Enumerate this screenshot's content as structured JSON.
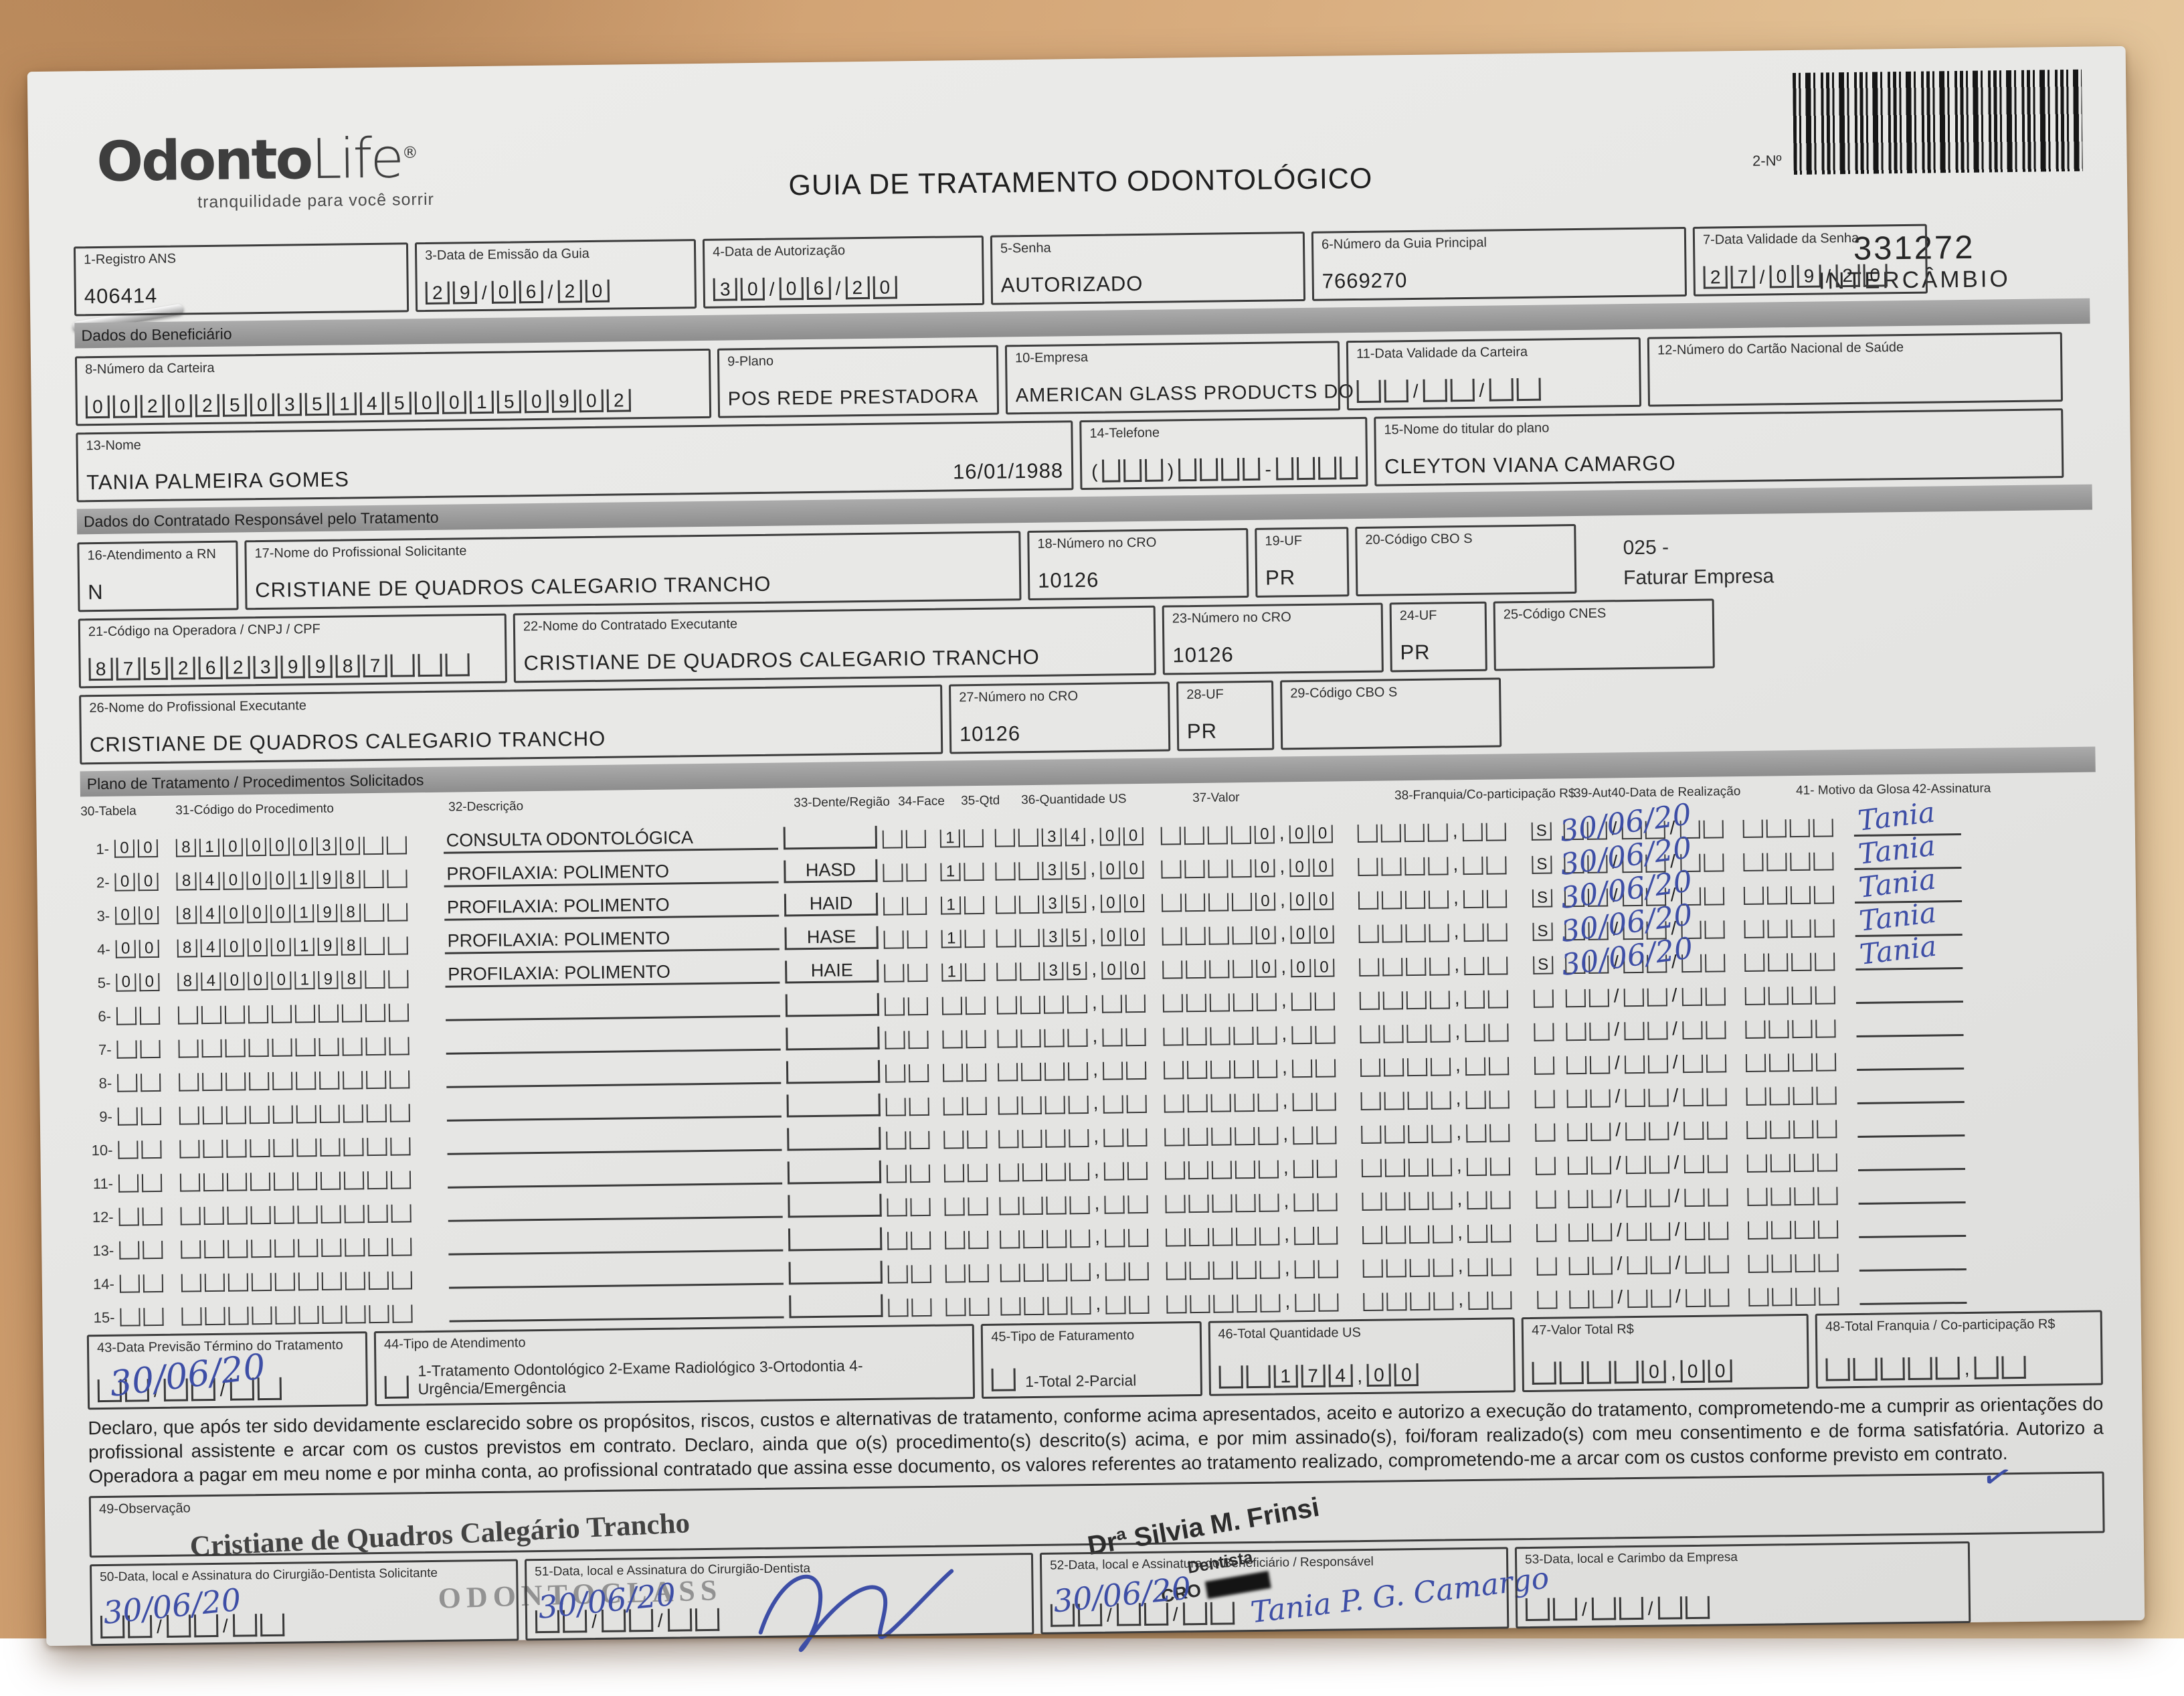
{
  "header": {
    "logo_bold": "Odonto",
    "logo_light": "Life",
    "logo_reg": "®",
    "tagline": "tranquilidade para você sorrir",
    "title": "GUIA DE TRATAMENTO ODONTOLÓGICO",
    "barcode_label": "2-Nº",
    "guide_number": "331272",
    "guide_type": "INTERCÂMBIO"
  },
  "sections": {
    "beneficiario": "Dados do Beneficiário",
    "contratado": "Dados do Contratado Responsável pelo Tratamento",
    "plano": "Plano de Tratamento / Procedimentos Solicitados"
  },
  "fields": {
    "f1": {
      "label": "1-Registro ANS",
      "value": "406414"
    },
    "f3": {
      "label": "3-Data de Emissão da Guia",
      "value": "29/06/20"
    },
    "f4": {
      "label": "4-Data de Autorização",
      "value": "30/06/20"
    },
    "f5": {
      "label": "5-Senha",
      "value": "AUTORIZADO"
    },
    "f6": {
      "label": "6-Número da Guia Principal",
      "value": "7669270"
    },
    "f7": {
      "label": "7-Data Validade da Senha",
      "value": "27/09/20"
    },
    "f8": {
      "label": "8-Número da Carteira",
      "value": "00202503514500150902"
    },
    "f9": {
      "label": "9-Plano",
      "value": "POS REDE PRESTADORA"
    },
    "f10": {
      "label": "10-Empresa",
      "value": "AMERICAN GLASS PRODUCTS DO"
    },
    "f11": {
      "label": "11-Data Validade da Carteira",
      "value": ""
    },
    "f12": {
      "label": "12-Número do Cartão Nacional de Saúde",
      "value": ""
    },
    "f13": {
      "label": "13-Nome",
      "value": "TANIA PALMEIRA GOMES",
      "birthdate": "16/01/1988"
    },
    "f14": {
      "label": "14-Telefone",
      "value": ""
    },
    "f15": {
      "label": "15-Nome do titular do plano",
      "value": "CLEYTON VIANA CAMARGO"
    },
    "f16": {
      "label": "16-Atendimento a RN",
      "value": "N"
    },
    "f17": {
      "label": "17-Nome do Profissional Solicitante",
      "value": "CRISTIANE DE QUADROS CALEGARIO TRANCHO"
    },
    "f18": {
      "label": "18-Número no CRO",
      "value": "10126"
    },
    "f19": {
      "label": "19-UF",
      "value": "PR"
    },
    "f20": {
      "label": "20-Código CBO S",
      "value": ""
    },
    "f21": {
      "label": "21-Código na Operadora / CNPJ / CPF",
      "value": "87526239987"
    },
    "f22": {
      "label": "22-Nome do Contratado Executante",
      "value": "CRISTIANE DE QUADROS CALEGARIO TRANCHO"
    },
    "f23": {
      "label": "23-Número no CRO",
      "value": "10126"
    },
    "f24": {
      "label": "24-UF",
      "value": "PR"
    },
    "f25": {
      "label": "25-Código CNES",
      "value": ""
    },
    "f26": {
      "label": "26-Nome do Profissional Executante",
      "value": "CRISTIANE DE QUADROS CALEGARIO TRANCHO"
    },
    "f27": {
      "label": "27-Número no CRO",
      "value": "10126"
    },
    "f28": {
      "label": "28-UF",
      "value": "PR"
    },
    "f29": {
      "label": "29-Código CBO S",
      "value": ""
    },
    "f43": {
      "label": "43-Data Previsão Término do Tratamento",
      "handwritten": "30/06/20"
    },
    "f44": {
      "label": "44-Tipo de Atendimento",
      "options": "1-Tratamento Odontológico  2-Exame Radiológico  3-Ortodontia  4-Urgência/Emergência"
    },
    "f45": {
      "label": "45-Tipo de Faturamento",
      "options": "1-Total  2-Parcial"
    },
    "f46": {
      "label": "46-Total Quantidade US",
      "value": "174,00"
    },
    "f47": {
      "label": "47-Valor Total R$",
      "value": "0,00"
    },
    "f48": {
      "label": "48-Total Franquia / Co-participação R$",
      "value": ""
    },
    "f49": {
      "label": "49-Observação"
    },
    "f50": {
      "label": "50-Data, local e Assinatura do Cirurgião-Dentista Solicitante",
      "handwritten": "30/06/20"
    },
    "f51": {
      "label": "51-Data, local e Assinatura do Cirurgião-Dentista",
      "handwritten": "30/06/20"
    },
    "f52": {
      "label": "52-Data, local e Assinatura do Beneficiário / Responsável",
      "handwritten": "30/06/20",
      "signature": "Tania P. G. Camargo"
    },
    "f53": {
      "label": "53-Data, local e Carimbo da Empresa"
    }
  },
  "extra": {
    "code": "025 -",
    "code_desc": "Faturar Empresa"
  },
  "table": {
    "columns": [
      "30-Tabela",
      "31-Código do Procedimento",
      "32-Descrição",
      "33-Dente/Região",
      "34-Face",
      "35-Qtd",
      "36-Quantidade US",
      "37-Valor",
      "38-Franquia/Co-participação R$",
      "39-Aut",
      "40-Data de Realização",
      "41- Motivo da Glosa",
      "42-Assinatura"
    ],
    "rows": [
      {
        "n": "1",
        "tabela": "00",
        "codigo": "81000030",
        "descricao": "CONSULTA ODONTOLÓGICA",
        "dente": "",
        "face": "",
        "qtd": "1",
        "quantidade_us": "34,00",
        "valor": "0,00",
        "franquia": "",
        "aut": "S",
        "data_realizacao": "30/06/20",
        "assinatura": "Tania"
      },
      {
        "n": "2",
        "tabela": "00",
        "codigo": "84000198",
        "descricao": "PROFILAXIA: POLIMENTO",
        "dente": "HASD",
        "face": "",
        "qtd": "1",
        "quantidade_us": "35,00",
        "valor": "0,00",
        "franquia": "",
        "aut": "S",
        "data_realizacao": "30/06/20",
        "assinatura": "Tania"
      },
      {
        "n": "3",
        "tabela": "00",
        "codigo": "84000198",
        "descricao": "PROFILAXIA: POLIMENTO",
        "dente": "HAID",
        "face": "",
        "qtd": "1",
        "quantidade_us": "35,00",
        "valor": "0,00",
        "franquia": "",
        "aut": "S",
        "data_realizacao": "30/06/20",
        "assinatura": "Tania"
      },
      {
        "n": "4",
        "tabela": "00",
        "codigo": "84000198",
        "descricao": "PROFILAXIA: POLIMENTO",
        "dente": "HASE",
        "face": "",
        "qtd": "1",
        "quantidade_us": "35,00",
        "valor": "0,00",
        "franquia": "",
        "aut": "S",
        "data_realizacao": "30/06/20",
        "assinatura": "Tania"
      },
      {
        "n": "5",
        "tabela": "00",
        "codigo": "84000198",
        "descricao": "PROFILAXIA: POLIMENTO",
        "dente": "HAIE",
        "face": "",
        "qtd": "1",
        "quantidade_us": "35,00",
        "valor": "0,00",
        "franquia": "",
        "aut": "S",
        "data_realizacao": "30/06/20",
        "assinatura": "Tania"
      },
      {
        "n": "6",
        "tabela": "",
        "codigo": "",
        "descricao": "",
        "dente": "",
        "face": "",
        "qtd": "",
        "quantidade_us": "",
        "valor": "",
        "franquia": "",
        "aut": "",
        "data_realizacao": "",
        "assinatura": ""
      },
      {
        "n": "7",
        "tabela": "",
        "codigo": "",
        "descricao": "",
        "dente": "",
        "face": "",
        "qtd": "",
        "quantidade_us": "",
        "valor": "",
        "franquia": "",
        "aut": "",
        "data_realizacao": "",
        "assinatura": ""
      },
      {
        "n": "8",
        "tabela": "",
        "codigo": "",
        "descricao": "",
        "dente": "",
        "face": "",
        "qtd": "",
        "quantidade_us": "",
        "valor": "",
        "franquia": "",
        "aut": "",
        "data_realizacao": "",
        "assinatura": ""
      },
      {
        "n": "9",
        "tabela": "",
        "codigo": "",
        "descricao": "",
        "dente": "",
        "face": "",
        "qtd": "",
        "quantidade_us": "",
        "valor": "",
        "franquia": "",
        "aut": "",
        "data_realizacao": "",
        "assinatura": ""
      },
      {
        "n": "10",
        "tabela": "",
        "codigo": "",
        "descricao": "",
        "dente": "",
        "face": "",
        "qtd": "",
        "quantidade_us": "",
        "valor": "",
        "franquia": "",
        "aut": "",
        "data_realizacao": "",
        "assinatura": ""
      },
      {
        "n": "11",
        "tabela": "",
        "codigo": "",
        "descricao": "",
        "dente": "",
        "face": "",
        "qtd": "",
        "quantidade_us": "",
        "valor": "",
        "franquia": "",
        "aut": "",
        "data_realizacao": "",
        "assinatura": ""
      },
      {
        "n": "12",
        "tabela": "",
        "codigo": "",
        "descricao": "",
        "dente": "",
        "face": "",
        "qtd": "",
        "quantidade_us": "",
        "valor": "",
        "franquia": "",
        "aut": "",
        "data_realizacao": "",
        "assinatura": ""
      },
      {
        "n": "13",
        "tabela": "",
        "codigo": "",
        "descricao": "",
        "dente": "",
        "face": "",
        "qtd": "",
        "quantidade_us": "",
        "valor": "",
        "franquia": "",
        "aut": "",
        "data_realizacao": "",
        "assinatura": ""
      },
      {
        "n": "14",
        "tabela": "",
        "codigo": "",
        "descricao": "",
        "dente": "",
        "face": "",
        "qtd": "",
        "quantidade_us": "",
        "valor": "",
        "franquia": "",
        "aut": "",
        "data_realizacao": "",
        "assinatura": ""
      },
      {
        "n": "15",
        "tabela": "",
        "codigo": "",
        "descricao": "",
        "dente": "",
        "face": "",
        "qtd": "",
        "quantidade_us": "",
        "valor": "",
        "franquia": "",
        "aut": "",
        "data_realizacao": "",
        "assinatura": ""
      }
    ]
  },
  "declaration": "Declaro, que após ter sido devidamente esclarecido sobre os propósitos, riscos, custos e alternativas de tratamento, conforme acima apresentados, aceito e autorizo a execução do tratamento, comprometendo-me a cumprir as orientações do profissional assistente e arcar com os custos previstos em contrato. Declaro, ainda que o(s) procedimento(s) descrito(s) acima, e por mim assinado(s), foi/foram realizado(s) com meu consentimento e de forma satisfatória. Autorizo a Operadora a pagar em meu nome e por minha conta, ao profissional contratado que assina esse documento, os valores referentes ao tratamento realizado, comprometendo-me a arcar com os custos conforme previsto em contrato.",
  "stamps": {
    "solicitante_name": "Cristiane de Quadros Calegário Trancho",
    "clinic": "ODONTOCLASS",
    "dentist": "Drª Silvia M. Frinsi",
    "dentist_role": "Dentista",
    "dentist_cro": "CRO"
  },
  "colors": {
    "ink_blue": "#3d4ea6",
    "stamp_gray": "#6e6e6e",
    "bar_gray": "#9a9a9a",
    "paper": "#e9e9e7",
    "wood": "#d2a678"
  }
}
